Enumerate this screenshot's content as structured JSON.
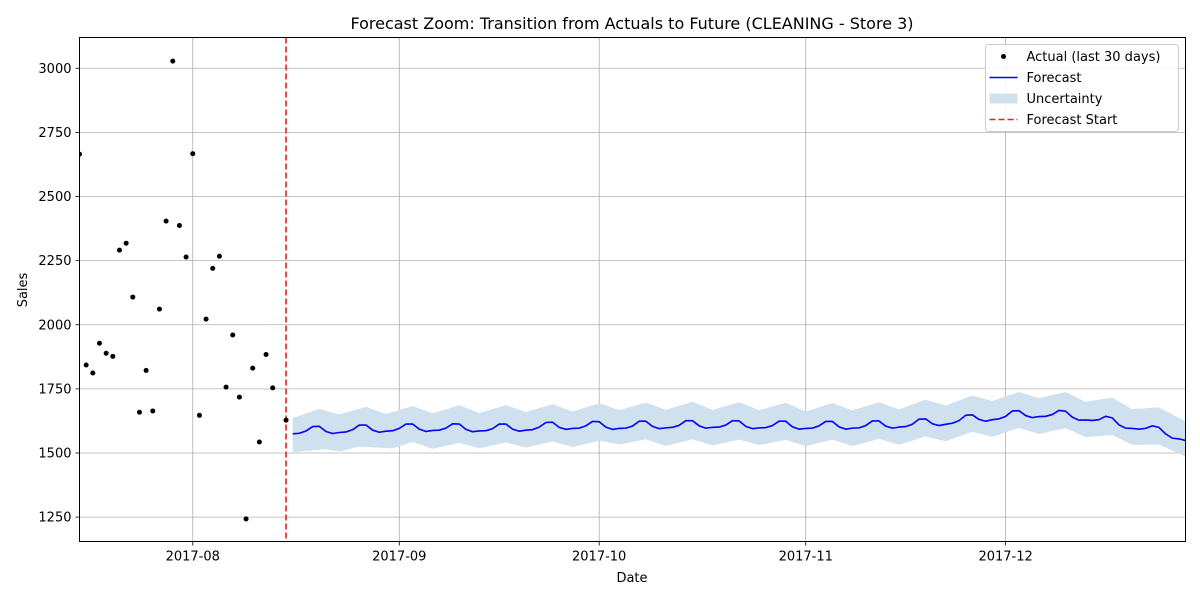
{
  "chart_data": {
    "type": "line",
    "title": "Forecast Zoom: Transition from Actuals to Future (CLEANING - Store 3)",
    "xlabel": "Date",
    "ylabel": "Sales",
    "xlim": [
      "2017-07-15",
      "2017-12-28"
    ],
    "ylim": [
      1155,
      3120
    ],
    "grid": true,
    "legend_position": "top-right",
    "x_ticks": [
      {
        "date": "2017-08-01",
        "label": "2017-08"
      },
      {
        "date": "2017-09-01",
        "label": "2017-09"
      },
      {
        "date": "2017-10-01",
        "label": "2017-10"
      },
      {
        "date": "2017-11-01",
        "label": "2017-11"
      },
      {
        "date": "2017-12-01",
        "label": "2017-12"
      }
    ],
    "y_ticks": [
      1250,
      1500,
      1750,
      2000,
      2250,
      2500,
      2750,
      3000
    ],
    "forecast_start": "2017-08-15",
    "colors": {
      "actual": "#000000",
      "forecast": "#0000ff",
      "uncertainty": "#cfe0ee",
      "forecast_start": "#e8211e",
      "grid": "#b0b0b0"
    },
    "legend": [
      {
        "label": "Actual (last 30 days)",
        "kind": "dot",
        "color": "#000000"
      },
      {
        "label": "Forecast",
        "kind": "line",
        "color": "#0000ff"
      },
      {
        "label": "Uncertainty",
        "kind": "patch",
        "color": "#cfe0ee"
      },
      {
        "label": "Forecast Start",
        "kind": "dashed",
        "color": "#e8211e"
      }
    ],
    "series": [
      {
        "name": "Actual (last 30 days)",
        "kind": "scatter",
        "points": [
          [
            "2017-07-15",
            2665
          ],
          [
            "2017-07-16",
            1843
          ],
          [
            "2017-07-17",
            1812
          ],
          [
            "2017-07-18",
            1928
          ],
          [
            "2017-07-19",
            1889
          ],
          [
            "2017-07-20",
            1877
          ],
          [
            "2017-07-21",
            2291
          ],
          [
            "2017-07-22",
            2318
          ],
          [
            "2017-07-23",
            2108
          ],
          [
            "2017-07-24",
            1659
          ],
          [
            "2017-07-25",
            1822
          ],
          [
            "2017-07-26",
            1664
          ],
          [
            "2017-07-27",
            2061
          ],
          [
            "2017-07-28",
            2404
          ],
          [
            "2017-07-29",
            3028
          ],
          [
            "2017-07-30",
            2387
          ],
          [
            "2017-07-31",
            2264
          ],
          [
            "2017-08-01",
            2667
          ],
          [
            "2017-08-02",
            1647
          ],
          [
            "2017-08-03",
            2022
          ],
          [
            "2017-08-04",
            2220
          ],
          [
            "2017-08-05",
            2267
          ],
          [
            "2017-08-06",
            1757
          ],
          [
            "2017-08-07",
            1960
          ],
          [
            "2017-08-08",
            1718
          ],
          [
            "2017-08-09",
            1243
          ],
          [
            "2017-08-10",
            1831
          ],
          [
            "2017-08-11",
            1543
          ],
          [
            "2017-08-12",
            1884
          ],
          [
            "2017-08-13",
            1754
          ],
          [
            "2017-08-15",
            1628
          ]
        ]
      },
      {
        "name": "Forecast",
        "kind": "line",
        "points": [
          [
            "2017-08-16",
            1575
          ],
          [
            "2017-08-17",
            1577
          ],
          [
            "2017-08-18",
            1586
          ],
          [
            "2017-08-19",
            1603
          ],
          [
            "2017-08-20",
            1604
          ],
          [
            "2017-08-21",
            1584
          ],
          [
            "2017-08-22",
            1576
          ],
          [
            "2017-08-23",
            1580
          ],
          [
            "2017-08-24",
            1582
          ],
          [
            "2017-08-25",
            1591
          ],
          [
            "2017-08-26",
            1609
          ],
          [
            "2017-08-27",
            1609
          ],
          [
            "2017-08-28",
            1589
          ],
          [
            "2017-08-29",
            1581
          ],
          [
            "2017-08-30",
            1585
          ],
          [
            "2017-08-31",
            1587
          ],
          [
            "2017-09-01",
            1596
          ],
          [
            "2017-09-02",
            1613
          ],
          [
            "2017-09-03",
            1613
          ],
          [
            "2017-09-04",
            1593
          ],
          [
            "2017-09-05",
            1584
          ],
          [
            "2017-09-06",
            1588
          ],
          [
            "2017-09-07",
            1589
          ],
          [
            "2017-09-08",
            1597
          ],
          [
            "2017-09-09",
            1614
          ],
          [
            "2017-09-10",
            1613
          ],
          [
            "2017-09-11",
            1592
          ],
          [
            "2017-09-12",
            1583
          ],
          [
            "2017-09-13",
            1586
          ],
          [
            "2017-09-14",
            1587
          ],
          [
            "2017-09-15",
            1595
          ],
          [
            "2017-09-16",
            1613
          ],
          [
            "2017-09-17",
            1613
          ],
          [
            "2017-09-18",
            1593
          ],
          [
            "2017-09-19",
            1585
          ],
          [
            "2017-09-20",
            1589
          ],
          [
            "2017-09-21",
            1591
          ],
          [
            "2017-09-22",
            1601
          ],
          [
            "2017-09-23",
            1619
          ],
          [
            "2017-09-24",
            1620
          ],
          [
            "2017-09-25",
            1600
          ],
          [
            "2017-09-26",
            1592
          ],
          [
            "2017-09-27",
            1596
          ],
          [
            "2017-09-28",
            1597
          ],
          [
            "2017-09-29",
            1606
          ],
          [
            "2017-09-30",
            1623
          ],
          [
            "2017-10-01",
            1622
          ],
          [
            "2017-10-02",
            1601
          ],
          [
            "2017-10-03",
            1592
          ],
          [
            "2017-10-04",
            1596
          ],
          [
            "2017-10-05",
            1597
          ],
          [
            "2017-10-06",
            1605
          ],
          [
            "2017-10-07",
            1624
          ],
          [
            "2017-10-08",
            1624
          ],
          [
            "2017-10-09",
            1604
          ],
          [
            "2017-10-10",
            1595
          ],
          [
            "2017-10-11",
            1598
          ],
          [
            "2017-10-12",
            1600
          ],
          [
            "2017-10-13",
            1608
          ],
          [
            "2017-10-14",
            1626
          ],
          [
            "2017-10-15",
            1626
          ],
          [
            "2017-10-16",
            1606
          ],
          [
            "2017-10-17",
            1597
          ],
          [
            "2017-10-18",
            1600
          ],
          [
            "2017-10-19",
            1601
          ],
          [
            "2017-10-20",
            1609
          ],
          [
            "2017-10-21",
            1626
          ],
          [
            "2017-10-22",
            1625
          ],
          [
            "2017-10-23",
            1604
          ],
          [
            "2017-10-24",
            1595
          ],
          [
            "2017-10-25",
            1598
          ],
          [
            "2017-10-26",
            1599
          ],
          [
            "2017-10-27",
            1607
          ],
          [
            "2017-10-28",
            1624
          ],
          [
            "2017-10-29",
            1624
          ],
          [
            "2017-10-30",
            1602
          ],
          [
            "2017-10-31",
            1593
          ],
          [
            "2017-11-01",
            1596
          ],
          [
            "2017-11-02",
            1597
          ],
          [
            "2017-11-03",
            1606
          ],
          [
            "2017-11-04",
            1623
          ],
          [
            "2017-11-05",
            1623
          ],
          [
            "2017-11-06",
            1602
          ],
          [
            "2017-11-07",
            1593
          ],
          [
            "2017-11-08",
            1597
          ],
          [
            "2017-11-09",
            1598
          ],
          [
            "2017-11-10",
            1607
          ],
          [
            "2017-11-11",
            1625
          ],
          [
            "2017-11-12",
            1625
          ],
          [
            "2017-11-13",
            1605
          ],
          [
            "2017-11-14",
            1597
          ],
          [
            "2017-11-15",
            1601
          ],
          [
            "2017-11-16",
            1603
          ],
          [
            "2017-11-17",
            1612
          ],
          [
            "2017-11-18",
            1632
          ],
          [
            "2017-11-19",
            1633
          ],
          [
            "2017-11-20",
            1614
          ],
          [
            "2017-11-21",
            1607
          ],
          [
            "2017-11-22",
            1612
          ],
          [
            "2017-11-23",
            1616
          ],
          [
            "2017-11-24",
            1626
          ],
          [
            "2017-11-25",
            1647
          ],
          [
            "2017-11-26",
            1649
          ],
          [
            "2017-11-27",
            1631
          ],
          [
            "2017-11-28",
            1624
          ],
          [
            "2017-11-29",
            1630
          ],
          [
            "2017-11-30",
            1633
          ],
          [
            "2017-12-01",
            1643
          ],
          [
            "2017-12-02",
            1664
          ],
          [
            "2017-12-03",
            1665
          ],
          [
            "2017-12-04",
            1646
          ],
          [
            "2017-12-05",
            1638
          ],
          [
            "2017-12-06",
            1642
          ],
          [
            "2017-12-07",
            1643
          ],
          [
            "2017-12-08",
            1650
          ],
          [
            "2017-12-09",
            1666
          ],
          [
            "2017-12-10",
            1663
          ],
          [
            "2017-12-11",
            1640
          ],
          [
            "2017-12-12",
            1628
          ],
          [
            "2017-12-13",
            1629
          ],
          [
            "2017-12-14",
            1627
          ],
          [
            "2017-12-15",
            1630
          ],
          [
            "2017-12-16",
            1643
          ],
          [
            "2017-12-17",
            1637
          ],
          [
            "2017-12-18",
            1610
          ],
          [
            "2017-12-19",
            1597
          ],
          [
            "2017-12-20",
            1596
          ],
          [
            "2017-12-21",
            1593
          ],
          [
            "2017-12-22",
            1596
          ],
          [
            "2017-12-23",
            1606
          ],
          [
            "2017-12-24",
            1600
          ],
          [
            "2017-12-25",
            1575
          ],
          [
            "2017-12-26",
            1558
          ],
          [
            "2017-12-27",
            1555
          ],
          [
            "2017-12-28",
            1549
          ]
        ]
      },
      {
        "name": "Uncertainty",
        "kind": "band",
        "lower": [
          [
            "2017-08-16",
            1503
          ],
          [
            "2017-08-21",
            1515
          ],
          [
            "2017-08-23",
            1506
          ],
          [
            "2017-08-26",
            1525
          ],
          [
            "2017-08-31",
            1518
          ],
          [
            "2017-09-03",
            1543
          ],
          [
            "2017-09-06",
            1516
          ],
          [
            "2017-09-10",
            1540
          ],
          [
            "2017-09-13",
            1518
          ],
          [
            "2017-09-17",
            1541
          ],
          [
            "2017-09-20",
            1521
          ],
          [
            "2017-09-24",
            1545
          ],
          [
            "2017-09-27",
            1523
          ],
          [
            "2017-10-01",
            1549
          ],
          [
            "2017-10-04",
            1533
          ],
          [
            "2017-10-08",
            1553
          ],
          [
            "2017-10-11",
            1528
          ],
          [
            "2017-10-15",
            1553
          ],
          [
            "2017-10-18",
            1530
          ],
          [
            "2017-10-22",
            1552
          ],
          [
            "2017-10-25",
            1531
          ],
          [
            "2017-10-29",
            1551
          ],
          [
            "2017-11-01",
            1527
          ],
          [
            "2017-11-05",
            1552
          ],
          [
            "2017-11-08",
            1527
          ],
          [
            "2017-11-12",
            1555
          ],
          [
            "2017-11-15",
            1532
          ],
          [
            "2017-11-19",
            1565
          ],
          [
            "2017-11-22",
            1546
          ],
          [
            "2017-11-26",
            1583
          ],
          [
            "2017-11-29",
            1563
          ],
          [
            "2017-12-03",
            1598
          ],
          [
            "2017-12-06",
            1574
          ],
          [
            "2017-12-10",
            1597
          ],
          [
            "2017-12-13",
            1562
          ],
          [
            "2017-12-17",
            1570
          ],
          [
            "2017-12-20",
            1532
          ],
          [
            "2017-12-24",
            1533
          ],
          [
            "2017-12-28",
            1486
          ]
        ],
        "upper": [
          [
            "2017-08-16",
            1636
          ],
          [
            "2017-08-20",
            1672
          ],
          [
            "2017-08-23",
            1650
          ],
          [
            "2017-08-27",
            1680
          ],
          [
            "2017-08-30",
            1652
          ],
          [
            "2017-09-03",
            1683
          ],
          [
            "2017-09-06",
            1655
          ],
          [
            "2017-09-10",
            1686
          ],
          [
            "2017-09-13",
            1656
          ],
          [
            "2017-09-17",
            1686
          ],
          [
            "2017-09-20",
            1660
          ],
          [
            "2017-09-24",
            1690
          ],
          [
            "2017-09-27",
            1662
          ],
          [
            "2017-10-01",
            1694
          ],
          [
            "2017-10-04",
            1667
          ],
          [
            "2017-10-08",
            1697
          ],
          [
            "2017-10-11",
            1668
          ],
          [
            "2017-10-15",
            1700
          ],
          [
            "2017-10-18",
            1668
          ],
          [
            "2017-10-22",
            1698
          ],
          [
            "2017-10-25",
            1667
          ],
          [
            "2017-10-29",
            1696
          ],
          [
            "2017-11-01",
            1662
          ],
          [
            "2017-11-05",
            1695
          ],
          [
            "2017-11-08",
            1666
          ],
          [
            "2017-11-12",
            1698
          ],
          [
            "2017-11-15",
            1670
          ],
          [
            "2017-11-19",
            1708
          ],
          [
            "2017-11-22",
            1685
          ],
          [
            "2017-11-26",
            1724
          ],
          [
            "2017-11-29",
            1703
          ],
          [
            "2017-12-03",
            1738
          ],
          [
            "2017-12-06",
            1714
          ],
          [
            "2017-12-10",
            1738
          ],
          [
            "2017-12-13",
            1700
          ],
          [
            "2017-12-17",
            1716
          ],
          [
            "2017-12-20",
            1671
          ],
          [
            "2017-12-24",
            1678
          ],
          [
            "2017-12-28",
            1623
          ]
        ]
      }
    ]
  }
}
